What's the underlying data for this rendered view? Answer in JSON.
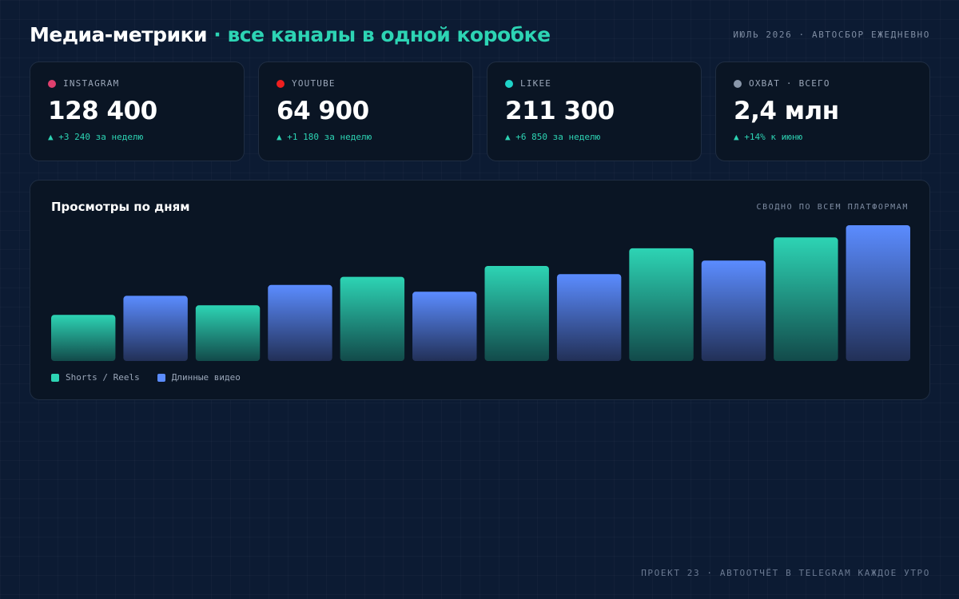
{
  "header": {
    "title_main": "Медиа-метрики",
    "title_sep": " · ",
    "title_accent": "все каналы в одной коробке",
    "meta": "ИЮЛЬ 2026 · АВТОСБОР ЕЖЕДНЕВНО"
  },
  "cards": [
    {
      "label": "INSTAGRAM",
      "dot_color": "#e0406e",
      "value": "128 400",
      "delta": "▲ +3 240 за неделю"
    },
    {
      "label": "YOUTUBE",
      "dot_color": "#ef1f1f",
      "value": "64 900",
      "delta": "▲ +1 180 за неделю"
    },
    {
      "label": "LIKEE",
      "dot_color": "#1fd3c8",
      "value": "211 300",
      "delta": "▲ +6 850 за неделю"
    },
    {
      "label": "ОХВАТ · ВСЕГО",
      "dot_color": "#8a98ab",
      "value": "2,4 млн",
      "delta": "▲ +14% к июню"
    }
  ],
  "chart_panel": {
    "title": "Просмотры по дням",
    "subtitle": "СВОДНО ПО ВСЕМ ПЛАТФОРМАМ"
  },
  "chart_data": {
    "type": "bar",
    "categories": [
      "",
      "",
      "",
      "",
      "",
      "",
      "",
      "",
      "",
      "",
      "",
      ""
    ],
    "values": [
      34,
      48,
      41,
      56,
      62,
      51,
      70,
      64,
      83,
      74,
      91,
      100
    ],
    "series_index": [
      0,
      1,
      0,
      1,
      0,
      1,
      0,
      1,
      0,
      1,
      0,
      1
    ],
    "series": [
      {
        "name": "Shorts / Reels",
        "color": "#2dd4b4"
      },
      {
        "name": "Длинные видео",
        "color": "#5b8cff"
      }
    ],
    "ylim": [
      0,
      100
    ],
    "grid": false,
    "legend_placement": "bottom-left"
  },
  "footer": "ПРОЕКТ 23 · АВТООТЧЁТ В TELEGRAM КАЖДОЕ УТРО"
}
